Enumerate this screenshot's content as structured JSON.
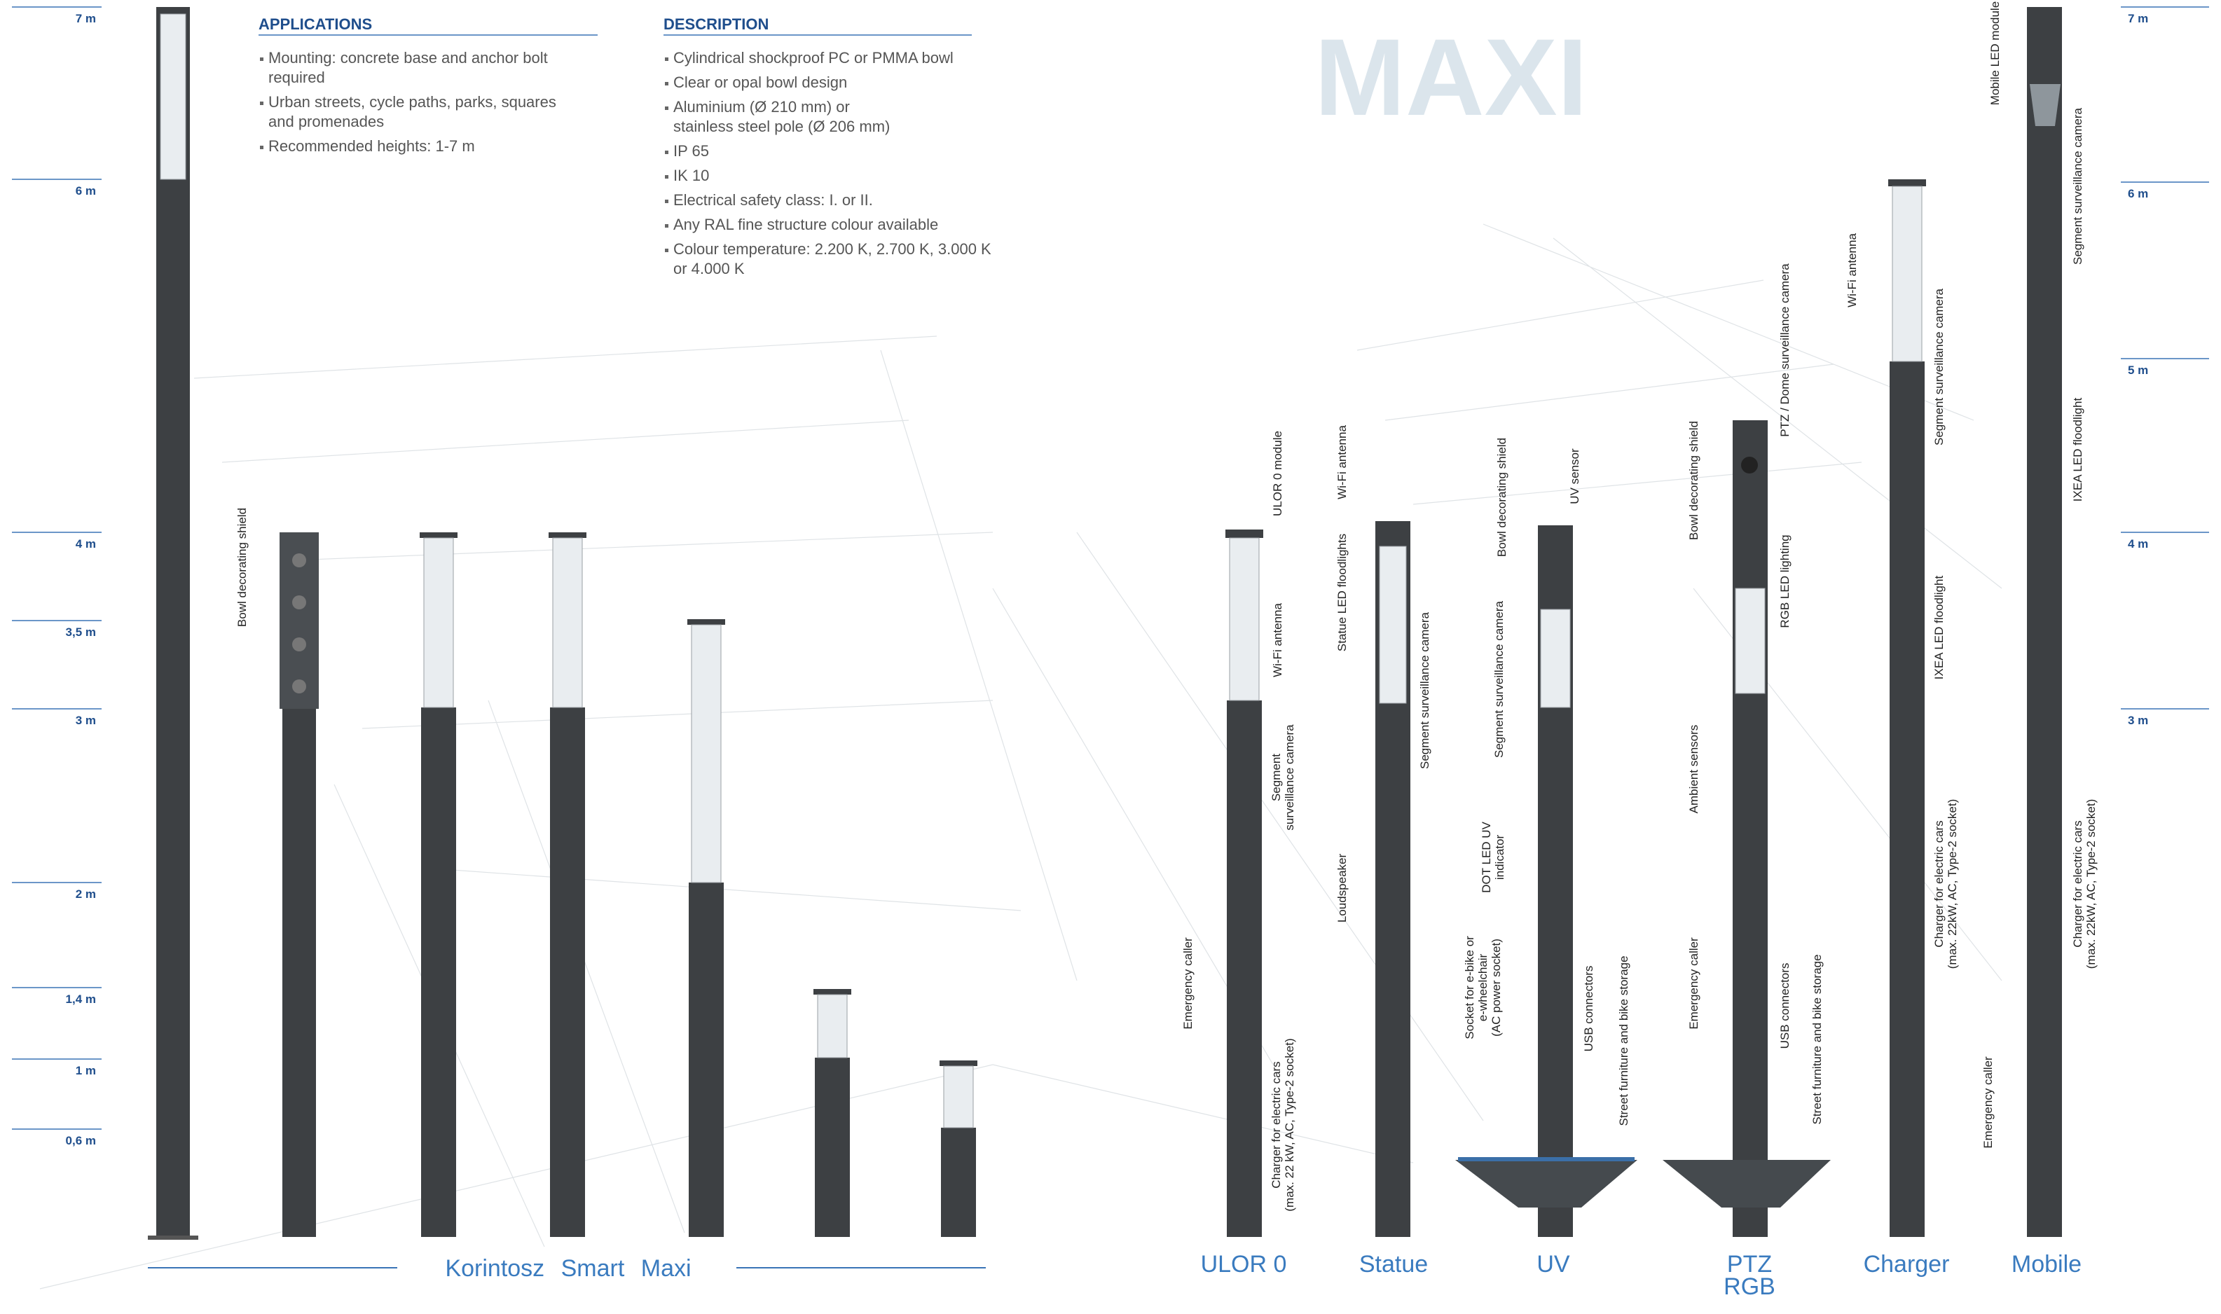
{
  "height_scale_left": [
    "7 m",
    "6 m",
    "4 m",
    "3,5 m",
    "3 m",
    "2 m",
    "1,4 m",
    "1 m",
    "0,6 m"
  ],
  "height_scale_right": [
    "7 m",
    "6 m",
    "5 m",
    "4 m",
    "3 m"
  ],
  "applications": {
    "title": "APPLICATIONS",
    "items": [
      [
        "Mounting: concrete base and anchor bolt",
        "required"
      ],
      [
        "Urban streets, cycle paths, parks, squares",
        "and promenades"
      ],
      [
        "Recommended heights: 1-7 m"
      ]
    ]
  },
  "description": {
    "title": "DESCRIPTION",
    "items": [
      [
        "Cylindrical shockproof PC or PMMA bowl"
      ],
      [
        "Clear or opal bowl design"
      ],
      [
        "Aluminium (Ø 210 mm) or",
        "stainless steel pole (Ø 206 mm)"
      ],
      [
        "IP 65"
      ],
      [
        "IK 10"
      ],
      [
        "Electrical safety class: I. or II."
      ],
      [
        "Any RAL fine structure colour available"
      ],
      [
        "Colour temperature: 2.200 K, 2.700 K, 3.000 K",
        "or 4.000 K"
      ]
    ]
  },
  "brand": "MAXI",
  "series_title": "Korintosz Smart Maxi",
  "products": [
    [
      "ULOR 0"
    ],
    [
      "Statue"
    ],
    [
      "UV"
    ],
    [
      "PTZ",
      "RGB"
    ],
    [
      "Charger"
    ],
    [
      "Mobile"
    ]
  ],
  "annotations": [
    [
      "Bowl decorating shield"
    ],
    [
      "ULOR 0 module"
    ],
    [
      "Wi-Fi antenna"
    ],
    [
      "Segment",
      "surveillance camera"
    ],
    [
      "Emergency caller"
    ],
    [
      "Charger for electric cars",
      "(max. 22 kW, AC, Type-2 socket)"
    ],
    [
      "Wi-Fi antenna"
    ],
    [
      "Statue LED floodlights"
    ],
    [
      "Segment surveillance camera"
    ],
    [
      "Loudspeaker"
    ],
    [
      "Bowl decorating shield"
    ],
    [
      "UV sensor"
    ],
    [
      "Segment surveillance camera"
    ],
    [
      "DOT LED UV",
      "indicator"
    ],
    [
      "Socket for e-bike or",
      "e-wheelchair",
      "(AC power socket)"
    ],
    [
      "USB connectors"
    ],
    [
      "Street furniture and bike storage"
    ],
    [
      "Bowl decorating shield"
    ],
    [
      "PTZ / Dome surveillance camera"
    ],
    [
      "RGB LED lighting"
    ],
    [
      "Ambient sensors"
    ],
    [
      "Emergency caller"
    ],
    [
      "USB connectors"
    ],
    [
      "Street furniture and bike storage"
    ],
    [
      "Wi-Fi antenna"
    ],
    [
      "Segment surveillance camera"
    ],
    [
      "IXEA LED floodlight"
    ],
    [
      "Charger for electric cars",
      "(max. 22kW, AC, Type-2 socket)"
    ],
    [
      "Mobile LED module"
    ],
    [
      "Segment surveillance camera"
    ],
    [
      "IXEA LED floodlight"
    ],
    [
      "Charger for electric cars",
      "(max. 22kW, AC, Type-2 socket)"
    ],
    [
      "Emergency caller"
    ]
  ]
}
